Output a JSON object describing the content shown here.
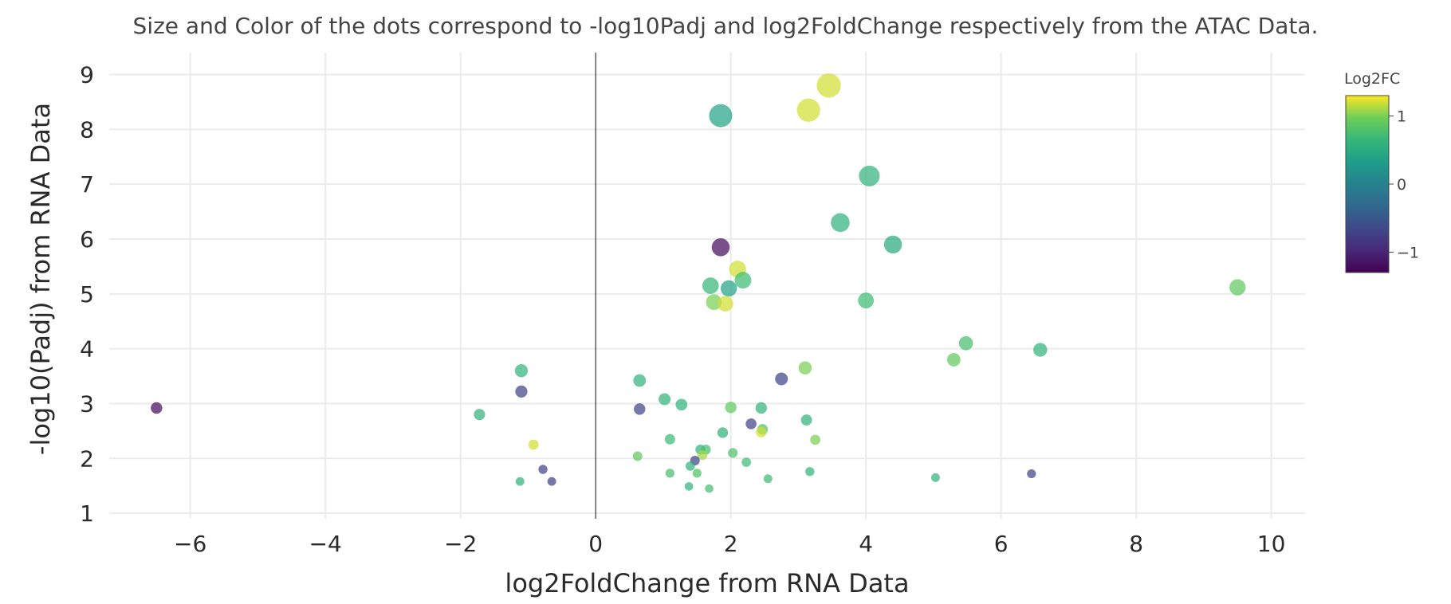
{
  "chart_data": {
    "type": "scatter",
    "title": "Size and Color of the dots correspond to -log10Padj and log2FoldChange respectively from the ATAC Data.",
    "xlabel": "log2FoldChange from RNA Data",
    "ylabel": "-log10(Padj) from RNA Data",
    "xlim": [
      -7.2,
      10.5
    ],
    "ylim": [
      0.9,
      9.4
    ],
    "x_ticks": [
      -6,
      -4,
      -2,
      0,
      2,
      4,
      6,
      8,
      10
    ],
    "x_tick_labels": [
      "−6",
      "−4",
      "−2",
      "0",
      "2",
      "4",
      "6",
      "8",
      "10"
    ],
    "y_ticks": [
      1,
      2,
      3,
      4,
      5,
      6,
      7,
      8,
      9
    ],
    "y_tick_labels": [
      "1",
      "2",
      "3",
      "4",
      "5",
      "6",
      "7",
      "8",
      "9"
    ],
    "grid": true,
    "zero_line_x": 0,
    "colorscale": "viridis",
    "colorbar": {
      "title": "Log2FC",
      "range": [
        -1.3,
        1.3
      ],
      "ticks": [
        1,
        0,
        -1
      ],
      "tick_labels": [
        "1",
        "0",
        "−1"
      ]
    },
    "points": [
      {
        "x": 3.45,
        "y": 8.8,
        "color": 1.2,
        "size": 8.8
      },
      {
        "x": 3.15,
        "y": 8.35,
        "color": 1.2,
        "size": 8.4
      },
      {
        "x": 1.85,
        "y": 8.25,
        "color": 0.4,
        "size": 8.3
      },
      {
        "x": 4.05,
        "y": 7.15,
        "color": 0.6,
        "size": 7.2
      },
      {
        "x": 3.62,
        "y": 6.3,
        "color": 0.6,
        "size": 6.3
      },
      {
        "x": 4.4,
        "y": 5.9,
        "color": 0.5,
        "size": 5.9
      },
      {
        "x": 1.85,
        "y": 5.85,
        "color": -1.2,
        "size": 5.9
      },
      {
        "x": 2.1,
        "y": 5.45,
        "color": 1.2,
        "size": 5.5
      },
      {
        "x": 2.18,
        "y": 5.25,
        "color": 0.7,
        "size": 5.3
      },
      {
        "x": 1.7,
        "y": 5.15,
        "color": 0.65,
        "size": 5.2
      },
      {
        "x": 1.97,
        "y": 5.1,
        "color": 0.4,
        "size": 5.1
      },
      {
        "x": 9.5,
        "y": 5.12,
        "color": 0.9,
        "size": 5.1
      },
      {
        "x": 4.0,
        "y": 4.88,
        "color": 0.7,
        "size": 4.9
      },
      {
        "x": 1.75,
        "y": 4.85,
        "color": 1.0,
        "size": 4.9
      },
      {
        "x": 1.92,
        "y": 4.82,
        "color": 1.2,
        "size": 4.8
      },
      {
        "x": 5.48,
        "y": 4.1,
        "color": 0.75,
        "size": 4.1
      },
      {
        "x": 6.58,
        "y": 3.98,
        "color": 0.6,
        "size": 4.0
      },
      {
        "x": 5.3,
        "y": 3.8,
        "color": 0.9,
        "size": 3.8
      },
      {
        "x": 3.1,
        "y": 3.65,
        "color": 1.0,
        "size": 3.7
      },
      {
        "x": -1.1,
        "y": 3.6,
        "color": 0.6,
        "size": 3.6
      },
      {
        "x": 2.75,
        "y": 3.45,
        "color": -0.7,
        "size": 3.5
      },
      {
        "x": 0.65,
        "y": 3.42,
        "color": 0.6,
        "size": 3.4
      },
      {
        "x": -1.1,
        "y": 3.22,
        "color": -0.7,
        "size": 3.2
      },
      {
        "x": 1.02,
        "y": 3.08,
        "color": 0.6,
        "size": 3.1
      },
      {
        "x": 1.27,
        "y": 2.98,
        "color": 0.6,
        "size": 3.0
      },
      {
        "x": 2.0,
        "y": 2.93,
        "color": 0.9,
        "size": 2.9
      },
      {
        "x": 2.45,
        "y": 2.92,
        "color": 0.6,
        "size": 2.9
      },
      {
        "x": -6.5,
        "y": 2.92,
        "color": -1.2,
        "size": 2.9
      },
      {
        "x": 0.65,
        "y": 2.9,
        "color": -0.7,
        "size": 2.9
      },
      {
        "x": -1.72,
        "y": 2.8,
        "color": 0.6,
        "size": 2.8
      },
      {
        "x": 3.12,
        "y": 2.7,
        "color": 0.6,
        "size": 2.7
      },
      {
        "x": 2.3,
        "y": 2.63,
        "color": -0.7,
        "size": 2.6
      },
      {
        "x": 2.47,
        "y": 2.53,
        "color": 0.8,
        "size": 2.5
      },
      {
        "x": 2.45,
        "y": 2.48,
        "color": 1.2,
        "size": 2.5
      },
      {
        "x": 1.88,
        "y": 2.47,
        "color": 0.6,
        "size": 2.5
      },
      {
        "x": 1.1,
        "y": 2.35,
        "color": 0.7,
        "size": 2.4
      },
      {
        "x": 3.25,
        "y": 2.34,
        "color": 1.0,
        "size": 2.3
      },
      {
        "x": -0.92,
        "y": 2.25,
        "color": 1.2,
        "size": 2.3
      },
      {
        "x": 1.55,
        "y": 2.16,
        "color": 0.6,
        "size": 2.2
      },
      {
        "x": 1.63,
        "y": 2.16,
        "color": 0.75,
        "size": 2.2
      },
      {
        "x": 2.03,
        "y": 2.1,
        "color": 0.8,
        "size": 2.1
      },
      {
        "x": 1.58,
        "y": 2.06,
        "color": 1.1,
        "size": 2.1
      },
      {
        "x": 0.62,
        "y": 2.04,
        "color": 0.9,
        "size": 2.0
      },
      {
        "x": 1.47,
        "y": 1.96,
        "color": -0.7,
        "size": 2.0
      },
      {
        "x": 2.23,
        "y": 1.93,
        "color": 0.7,
        "size": 1.9
      },
      {
        "x": 1.4,
        "y": 1.86,
        "color": 0.6,
        "size": 1.9
      },
      {
        "x": -0.78,
        "y": 1.8,
        "color": -0.7,
        "size": 1.8
      },
      {
        "x": 3.17,
        "y": 1.76,
        "color": 0.6,
        "size": 1.8
      },
      {
        "x": 1.1,
        "y": 1.73,
        "color": 0.75,
        "size": 1.7
      },
      {
        "x": 1.5,
        "y": 1.73,
        "color": 0.8,
        "size": 1.7
      },
      {
        "x": 6.45,
        "y": 1.72,
        "color": -0.7,
        "size": 1.7
      },
      {
        "x": 5.03,
        "y": 1.65,
        "color": 0.6,
        "size": 1.6
      },
      {
        "x": 2.55,
        "y": 1.63,
        "color": 0.7,
        "size": 1.6
      },
      {
        "x": -1.12,
        "y": 1.58,
        "color": 0.6,
        "size": 1.6
      },
      {
        "x": -0.65,
        "y": 1.58,
        "color": -0.7,
        "size": 1.6
      },
      {
        "x": 1.38,
        "y": 1.49,
        "color": 0.6,
        "size": 1.5
      },
      {
        "x": 1.68,
        "y": 1.45,
        "color": 0.75,
        "size": 1.5
      }
    ]
  }
}
